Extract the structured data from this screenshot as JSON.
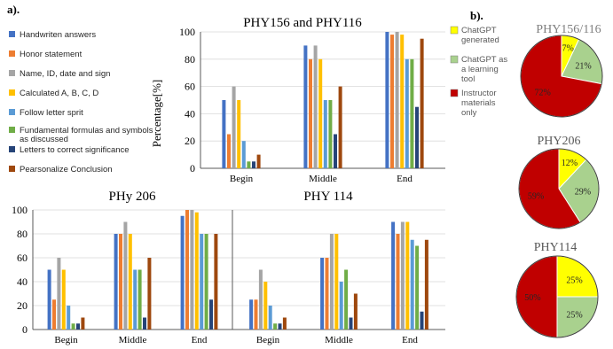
{
  "figure": {
    "panel_a_label": "a).",
    "panel_b_label": "b)."
  },
  "legend_a": [
    {
      "label": "Handwriten answers",
      "color": "#4472C4"
    },
    {
      "label": "Honor statement",
      "color": "#ED7D31"
    },
    {
      "label": "Name, ID, date and sign",
      "color": "#A5A5A5"
    },
    {
      "label": "Calculated A, B, C, D",
      "color": "#FFC000"
    },
    {
      "label": "Follow letter sprit",
      "color": "#5B9BD5"
    },
    {
      "label": "Fundamental formulas and symbols as discussed",
      "label_lines": [
        "Fundamental formulas and symbols",
        "as discussed"
      ],
      "color": "#70AD47"
    },
    {
      "label": "Letters to correct significance",
      "color": "#264478"
    },
    {
      "label": "Pearsonalize Conclusion",
      "color": "#9E480E"
    }
  ],
  "legend_b": [
    {
      "label": "ChatGPT generated",
      "lines": [
        "ChatGPT",
        "generated"
      ],
      "color": "#FFFF00"
    },
    {
      "label": "ChatGPT as a learning tool",
      "lines": [
        "ChatGPT as",
        "a learning",
        "tool"
      ],
      "color": "#A9D18E"
    },
    {
      "label": "Instructor materials only",
      "lines": [
        "Instructor",
        "materials",
        "only"
      ],
      "color": "#C00000"
    }
  ],
  "chart_data": [
    {
      "type": "bar",
      "title": "PHY156 and PHY116",
      "ylabel": "Percentage[%]",
      "ylim": [
        0,
        100
      ],
      "yticks": [
        "0",
        "20",
        "40",
        "60",
        "80",
        "100"
      ],
      "categories": [
        "Begin",
        "Middle",
        "End"
      ],
      "series": [
        {
          "name": "Handwriten answers",
          "values": [
            50,
            90,
            100
          ]
        },
        {
          "name": "Honor statement",
          "values": [
            25,
            80,
            98
          ]
        },
        {
          "name": "Name, ID, date and sign",
          "values": [
            60,
            90,
            100
          ]
        },
        {
          "name": "Calculated A, B, C, D",
          "values": [
            50,
            80,
            98
          ]
        },
        {
          "name": "Follow letter sprit",
          "values": [
            20,
            50,
            80
          ]
        },
        {
          "name": "Fundamental formulas and symbols as discussed",
          "values": [
            5,
            50,
            80
          ]
        },
        {
          "name": "Letters to correct significance",
          "values": [
            5,
            25,
            45
          ]
        },
        {
          "name": "Pearsonalize Conclusion",
          "values": [
            10,
            60,
            95
          ]
        }
      ]
    },
    {
      "type": "bar",
      "title": "PHy 206",
      "ylim": [
        0,
        100
      ],
      "yticks": [
        "0",
        "20",
        "40",
        "60",
        "80",
        "100"
      ],
      "categories": [
        "Begin",
        "Middle",
        "End"
      ],
      "series": [
        {
          "name": "Handwriten answers",
          "values": [
            50,
            80,
            95
          ]
        },
        {
          "name": "Honor statement",
          "values": [
            25,
            80,
            100
          ]
        },
        {
          "name": "Name, ID, date and sign",
          "values": [
            60,
            90,
            100
          ]
        },
        {
          "name": "Calculated A, B, C, D",
          "values": [
            50,
            80,
            98
          ]
        },
        {
          "name": "Follow letter sprit",
          "values": [
            20,
            50,
            80
          ]
        },
        {
          "name": "Fundamental formulas and symbols as discussed",
          "values": [
            5,
            50,
            80
          ]
        },
        {
          "name": "Letters to correct significance",
          "values": [
            5,
            10,
            25
          ]
        },
        {
          "name": "Pearsonalize Conclusion",
          "values": [
            10,
            60,
            80
          ]
        }
      ]
    },
    {
      "type": "bar",
      "title": "PHY 114",
      "ylim": [
        0,
        100
      ],
      "categories": [
        "Begin",
        "Middle",
        "End"
      ],
      "series": [
        {
          "name": "Handwriten answers",
          "values": [
            25,
            60,
            90
          ]
        },
        {
          "name": "Honor statement",
          "values": [
            25,
            60,
            80
          ]
        },
        {
          "name": "Name, ID, date and sign",
          "values": [
            50,
            80,
            90
          ]
        },
        {
          "name": "Calculated A, B, C, D",
          "values": [
            40,
            80,
            90
          ]
        },
        {
          "name": "Follow letter sprit",
          "values": [
            20,
            40,
            75
          ]
        },
        {
          "name": "Fundamental formulas and symbols as discussed",
          "values": [
            5,
            50,
            70
          ]
        },
        {
          "name": "Letters to correct significance",
          "values": [
            5,
            10,
            15
          ]
        },
        {
          "name": "Pearsonalize Conclusion",
          "values": [
            10,
            30,
            75
          ]
        }
      ]
    },
    {
      "type": "pie",
      "title": "PHY156/116",
      "values": [
        7,
        21,
        72
      ],
      "labels": [
        "7%",
        "21%",
        "72%"
      ]
    },
    {
      "type": "pie",
      "title": "PHY206",
      "values": [
        12,
        29,
        59
      ],
      "labels": [
        "12%",
        "29%",
        "59%"
      ]
    },
    {
      "type": "pie",
      "title": "PHY114",
      "values": [
        25,
        25,
        50
      ],
      "labels": [
        "25%",
        "25%",
        "50%"
      ]
    }
  ]
}
